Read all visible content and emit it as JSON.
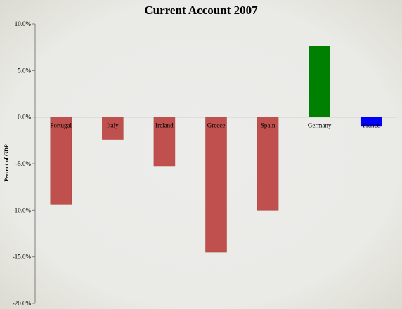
{
  "chart_data": {
    "type": "bar",
    "title": "Current Account 2007",
    "xlabel": "",
    "ylabel": "Percent of GDP",
    "categories": [
      "Portugal",
      "Italy",
      "Ireland",
      "Greece",
      "Spain",
      "Germany",
      "France"
    ],
    "values": [
      -9.4,
      -2.4,
      -5.3,
      -14.5,
      -10.0,
      7.6,
      -1.0
    ],
    "bar_colors": [
      "#c0504d",
      "#c0504d",
      "#c0504d",
      "#c0504d",
      "#c0504d",
      "#008000",
      "#0000ff"
    ],
    "ylim": [
      -20,
      10
    ],
    "yticks": [
      10,
      5,
      0,
      -5,
      -10,
      -15,
      -20
    ],
    "ytick_labels": [
      "10.0%",
      "5.0%",
      "0.0%",
      "-5.0%",
      "-10.0%",
      "-15.0%",
      "-20.0%"
    ],
    "grid": false,
    "legend": "none"
  }
}
